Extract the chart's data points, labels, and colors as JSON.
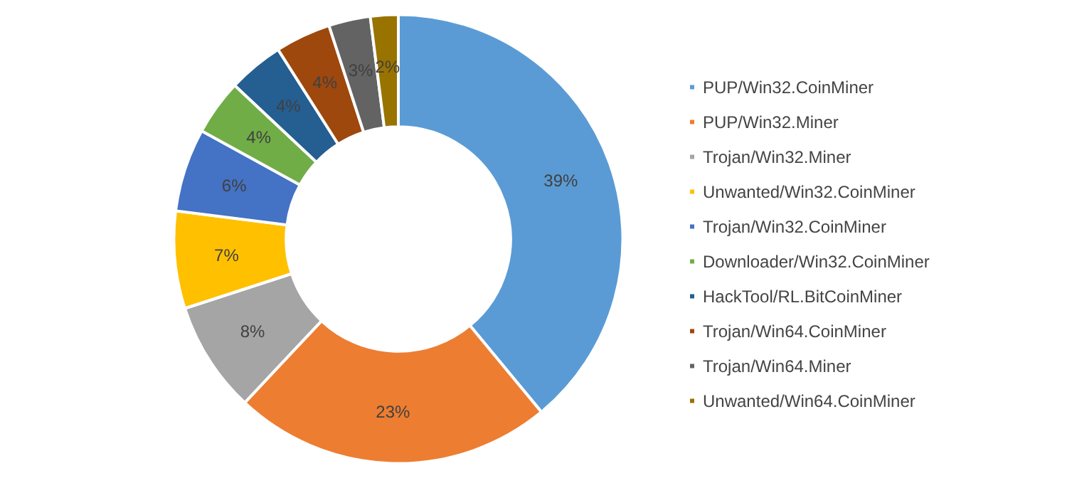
{
  "chart_data": {
    "type": "donut",
    "categories": [
      "PUP/Win32.CoinMiner",
      "PUP/Win32.Miner",
      "Trojan/Win32.Miner",
      "Unwanted/Win32.CoinMiner",
      "Trojan/Win32.CoinMiner",
      "Downloader/Win32.CoinMiner",
      "HackTool/RL.BitCoinMiner",
      "Trojan/Win64.CoinMiner",
      "Trojan/Win64.Miner",
      "Unwanted/Win64.CoinMiner"
    ],
    "values": [
      39,
      23,
      8,
      7,
      6,
      4,
      4,
      4,
      3,
      2
    ],
    "value_labels": [
      "39%",
      "23%",
      "8%",
      "7%",
      "6%",
      "4%",
      "4%",
      "4%",
      "3%",
      "2%"
    ],
    "colors": [
      "#5b9bd5",
      "#ed7d31",
      "#a5a5a5",
      "#ffc000",
      "#4472c4",
      "#70ad47",
      "#255e91",
      "#9e480e",
      "#636363",
      "#997300"
    ],
    "legend": "right"
  }
}
